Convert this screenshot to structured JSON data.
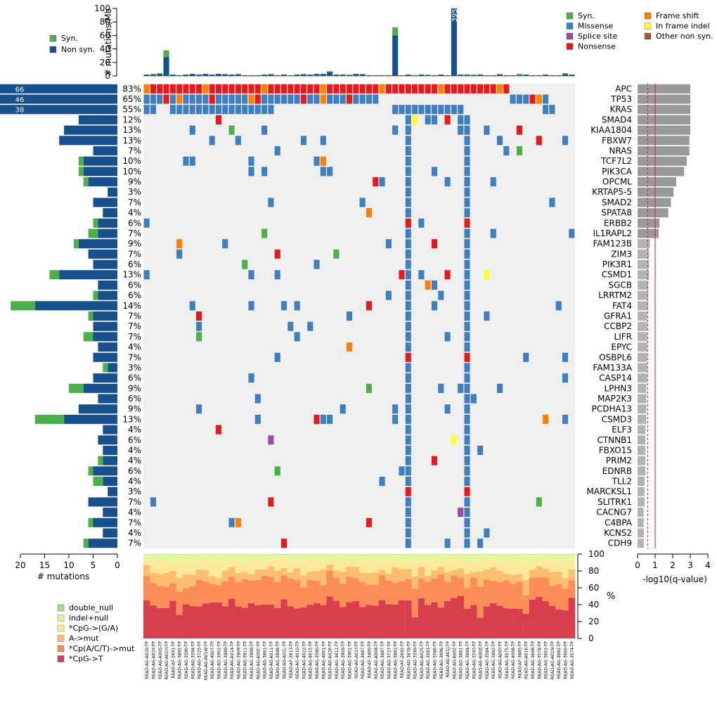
{
  "chart_data": {
    "type": "heatmap",
    "title": "Mutation landscape (oncoprint)",
    "genes": [
      "APC",
      "TP53",
      "KRAS",
      "SMAD4",
      "KIAA1804",
      "FBXW7",
      "NRAS",
      "TCF7L2",
      "PIK3CA",
      "OPCML",
      "KRTAP5-5",
      "SMAD2",
      "SPATA8",
      "ERBB2",
      "IL1RAPL2",
      "FAM123B",
      "ZIM3",
      "PIK3R1",
      "CSMD1",
      "SGCB",
      "LRRTM2",
      "FAT4",
      "GFRA1",
      "CCBP2",
      "LIFR",
      "EPYC",
      "OSBPL6",
      "FAM133A",
      "CASP14",
      "LPHN3",
      "MAP2K3",
      "PCDHA13",
      "CSMD3",
      "ELF3",
      "CTNNB1",
      "FBXO15",
      "PRIM2",
      "EDNRB",
      "TLL2",
      "MARCKSL1",
      "SLITRK1",
      "CACNG7",
      "C4BPA",
      "KCNS2",
      "CDH9"
    ],
    "gene_percent": [
      "83%",
      "65%",
      "55%",
      "12%",
      "13%",
      "13%",
      "7%",
      "10%",
      "10%",
      "9%",
      "3%",
      "7%",
      "4%",
      "6%",
      "7%",
      "9%",
      "7%",
      "6%",
      "13%",
      "6%",
      "6%",
      "14%",
      "7%",
      "7%",
      "7%",
      "4%",
      "7%",
      "3%",
      "6%",
      "9%",
      "6%",
      "9%",
      "13%",
      "4%",
      "6%",
      "4%",
      "4%",
      "6%",
      "4%",
      "3%",
      "7%",
      "4%",
      "7%",
      "4%",
      "7%"
    ],
    "gene_nonsyn_count": [
      66,
      46,
      38,
      8,
      11,
      12,
      5,
      7,
      7,
      6,
      2,
      5,
      3,
      4,
      4,
      8,
      6,
      5,
      12,
      4,
      4,
      17,
      5,
      5,
      5,
      4,
      5,
      2,
      5,
      7,
      4,
      8,
      11,
      3,
      4,
      3,
      3,
      5,
      3,
      2,
      6,
      3,
      5,
      3,
      6
    ],
    "gene_syn_count": [
      0,
      0,
      0,
      0,
      0,
      0,
      0,
      1,
      1,
      1,
      0,
      0,
      0,
      1,
      2,
      1,
      0,
      0,
      2,
      0,
      1,
      5,
      1,
      0,
      2,
      0,
      0,
      1,
      0,
      3,
      0,
      0,
      6,
      0,
      0,
      0,
      1,
      1,
      2,
      0,
      0,
      0,
      1,
      0,
      1
    ],
    "gene_bar_labels": [
      "66",
      "46",
      "38"
    ],
    "qvalues_log10": [
      3.0,
      3.0,
      3.0,
      3.0,
      3.0,
      2.95,
      2.95,
      2.8,
      2.65,
      2.2,
      2.05,
      1.9,
      1.75,
      1.25,
      1.2,
      0.7,
      0.65,
      0.65,
      0.65,
      0.6,
      0.6,
      0.6,
      0.55,
      0.55,
      0.55,
      0.55,
      0.55,
      0.55,
      0.55,
      0.5,
      0.5,
      0.5,
      0.5,
      0.45,
      0.45,
      0.45,
      0.45,
      0.45,
      0.4,
      0.4,
      0.4,
      0.35,
      0.35,
      0.35,
      0.35
    ],
    "qvalue_axis": {
      "label": "-log10(q-value)",
      "ticks": [
        "0",
        "1",
        "2",
        "3",
        "4"
      ],
      "range": [
        0,
        4
      ],
      "threshold": 1.0
    },
    "gene_axis": {
      "label": "# mutations",
      "ticks": [
        "20",
        "15",
        "10",
        "5",
        "0"
      ],
      "range": [
        0,
        22
      ]
    },
    "top_axis": {
      "label": "# mutations/Mb",
      "ticks": [
        "0",
        "20",
        "40",
        "60",
        "80",
        "100"
      ],
      "range": [
        0,
        100
      ]
    },
    "top_bar_label": "395",
    "samples": [
      "READ-AG-A020-TP",
      "READ-AG-A02X-TP",
      "READ-AG-A00S-TP",
      "READ-AG-A01H-TP",
      "READ-AF-2691-TP",
      "READ-AG-3892-TP",
      "READ-AG-3590-TP",
      "READ-AG-3594-TP",
      "READ-AG-3725-TP",
      "READ-AG-A01W-TP",
      "READ-AG-4007-TP",
      "READ-AG-3902-TP",
      "READ-AG-3889-TP",
      "READ-AG-A014-TP",
      "READ-AG-3909-TP",
      "READ-AG-3911-TP",
      "READ-AG-3999-TP",
      "READ-AG-A00C-TP",
      "READ-AG-3881-TP",
      "READ-AG-A011-TP",
      "READ-AG-3898-TP",
      "READ-AG-A01L-TP",
      "READ-AF-3913-TP",
      "READ-AG-4010-TP",
      "READ-AG-4022-TP",
      "READ-AG-4015-TP",
      "READ-AG-3580-TP",
      "READ-AG-4001-TP",
      "READ-AG-A026-TP",
      "READ-AG-3612-TP",
      "READ-AG-3909-TP",
      "READ-AG-3901-TP",
      "READ-AG-A01Y-TP",
      "READ-AG-3887-TP",
      "READ-AF-3400-TP",
      "READ-AG-A008-TP",
      "READ-AG-3887-TP",
      "READ-AG-3727-TP",
      "READ-AG-3882-TP",
      "READ-AF-2692-TP",
      "READ-AG-3878-TP",
      "READ-AG-3599-TP",
      "READ-AG-A025-TP",
      "READ-AG-3583-TP",
      "READ-AG-3586-TP",
      "READ-AG-3896-TP",
      "READ-AG-A01J-TP",
      "READ-AG-A002-TP",
      "READ-AG-3881-TP",
      "READ-AG-3884-TP",
      "READ-AG-3593-TP",
      "READ-AG-A00Z-TP",
      "READ-AG-3584-TP",
      "READ-AG-3883-TP",
      "READ-AG-A00Y-TP",
      "READ-AG-3575-TP",
      "READ-AG-4008-TP",
      "READ-AF-3885-TP",
      "READ-AG-A016-TP",
      "READ-AG-3608-TP",
      "READ-AG-3578-TP",
      "READ-AG-3601-TP",
      "READ-AG-A01N-TP",
      "READ-AG-3882-TP",
      "READ-AG-3600-TP",
      "READ-AG-3574-TP"
    ],
    "mutation_matrix_code_legend": "0=none,1=missense,2=nonsense,3=frame shift,4=syn,5=splice site,6=in frame indel,7=other non syn.",
    "top_bars": {
      "nonsyn": [
        2,
        2,
        3,
        28,
        2,
        1,
        2,
        3,
        2,
        3,
        2,
        3,
        2,
        2,
        2,
        1,
        1,
        1,
        2,
        2,
        1,
        2,
        1,
        2,
        2,
        2,
        3,
        3,
        6,
        2,
        2,
        1,
        3,
        2,
        1,
        1,
        1,
        1,
        60,
        1,
        2,
        1,
        2,
        1,
        1,
        2,
        1,
        100,
        2,
        2,
        1,
        2,
        1,
        1,
        2,
        1,
        1,
        1,
        2,
        1,
        1,
        2,
        1,
        1,
        3,
        2
      ],
      "syn": [
        0,
        1,
        1,
        10,
        0,
        0,
        0,
        0,
        0,
        0,
        0,
        0,
        1,
        0,
        1,
        0,
        0,
        0,
        0,
        1,
        0,
        0,
        0,
        0,
        1,
        0,
        0,
        0,
        1,
        0,
        0,
        1,
        0,
        1,
        0,
        0,
        0,
        0,
        12,
        0,
        0,
        0,
        0,
        1,
        0,
        0,
        0,
        0,
        0,
        0,
        1,
        0,
        0,
        0,
        1,
        0,
        0,
        2,
        0,
        0,
        0,
        0,
        0,
        0,
        1,
        0
      ]
    },
    "spectrum_categories": [
      "*CpG->T",
      "*Cp(A/C/T)->mut",
      "A->mut",
      "*CpG->(G/A)",
      "indel+null",
      "double_null"
    ],
    "spectrum_axis": {
      "label": "%",
      "ticks": [
        "0",
        "20",
        "40",
        "60",
        "80",
        "100"
      ],
      "range": [
        0,
        100
      ]
    }
  },
  "legend_top_left": [
    {
      "label": "Syn.",
      "color": "#4daf4a"
    },
    {
      "label": "Non syn.",
      "color": "#17508c"
    }
  ],
  "legend_top_right": [
    {
      "label": "Syn.",
      "color": "#4daf4a"
    },
    {
      "label": "Missense",
      "color": "#3f7fbf"
    },
    {
      "label": "Splice site",
      "color": "#984ea3"
    },
    {
      "label": "Nonsense",
      "color": "#e41a1c"
    },
    {
      "label": "Frame shift",
      "color": "#ff7f00"
    },
    {
      "label": "In frame indel",
      "color": "#ffff33"
    },
    {
      "label": "Other non syn.",
      "color": "#a65628"
    }
  ],
  "legend_bottom_left": [
    {
      "label": "double_null",
      "color": "#a6dba0"
    },
    {
      "label": "indel+null",
      "color": "#e6f5a0"
    },
    {
      "label": "*CpG->(G/A)",
      "color": "#fee99a"
    },
    {
      "label": "A->mut",
      "color": "#fdbf6f"
    },
    {
      "label": "*Cp(A/C/T)->mut",
      "color": "#fc8d59"
    },
    {
      "label": "*CpG->T",
      "color": "#d73f4e"
    }
  ],
  "colors": {
    "nonsyn_bar": "#17508c",
    "syn_bar": "#4daf4a",
    "grid_bg": "#efefef",
    "qbar": "#999999",
    "threshold": "#e41a1c"
  }
}
